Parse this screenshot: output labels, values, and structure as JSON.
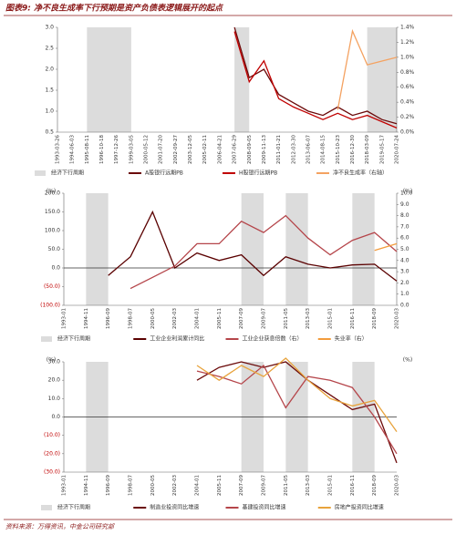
{
  "title": "图表9: 净不良生成率下行预期是资产负债表逻辑展开的起点",
  "source": "资料来源：万得资讯，中金公司研究部",
  "chart_data": [
    {
      "type": "line",
      "categories": [
        "1993-03-26",
        "1994-06-03",
        "1995-08-11",
        "1996-10-18",
        "1997-12-26",
        "1999-03-05",
        "2000-05-12",
        "2001-07-20",
        "2002-09-27",
        "2003-12-05",
        "2005-02-11",
        "2006-04-21",
        "2007-06-29",
        "2008-09-05",
        "2009-11-13",
        "2011-01-21",
        "2012-03-30",
        "2013-06-07",
        "2014-08-15",
        "2015-10-23",
        "2016-12-30",
        "2018-03-09",
        "2019-05-17",
        "2020-07-24"
      ],
      "shading": {
        "name": "经济下行周期",
        "color": "#dcdcdc",
        "periods": [
          [
            "1995-08-11",
            "1999-03-05"
          ],
          [
            "2007-06-29",
            "2008-09-05"
          ],
          [
            "2018-03-09",
            "2020-07-24"
          ]
        ]
      },
      "series": [
        {
          "name": "A股银行远期PB",
          "color": "#6b0a0a",
          "values": [
            null,
            null,
            null,
            null,
            null,
            null,
            null,
            null,
            null,
            null,
            null,
            null,
            3.0,
            1.8,
            2.0,
            1.4,
            1.2,
            1.0,
            0.9,
            1.1,
            0.9,
            1.0,
            0.8,
            0.7
          ]
        },
        {
          "name": "H股银行远期PB",
          "color": "#c00000",
          "values": [
            null,
            null,
            null,
            null,
            null,
            null,
            null,
            null,
            null,
            null,
            null,
            null,
            2.9,
            1.7,
            2.2,
            1.3,
            1.1,
            0.95,
            0.8,
            0.95,
            0.8,
            0.9,
            0.75,
            0.6
          ]
        },
        {
          "name": "净不良生成率（右轴）",
          "color": "#f4a261",
          "axis": "y2",
          "values": [
            null,
            null,
            null,
            null,
            null,
            null,
            null,
            null,
            null,
            null,
            null,
            null,
            null,
            null,
            null,
            null,
            null,
            null,
            null,
            0.3,
            1.35,
            0.9,
            0.95,
            1.0
          ]
        }
      ],
      "ylim": [
        0.5,
        3.0
      ],
      "yticks": [
        {
          "value": 0.5,
          "label": "0.5"
        },
        {
          "value": 1.0,
          "label": "1.0"
        },
        {
          "value": 1.5,
          "label": "1.5"
        },
        {
          "value": 2.0,
          "label": "2.0"
        },
        {
          "value": 2.5,
          "label": "2.5"
        },
        {
          "value": 3.0,
          "label": "3.0"
        }
      ],
      "y2lim": [
        0,
        1.4
      ],
      "y2ticks": [
        {
          "value": 0,
          "label": "0.0%"
        },
        {
          "value": 0.2,
          "label": "0.2%"
        },
        {
          "value": 0.4,
          "label": "0.4%"
        },
        {
          "value": 0.6,
          "label": "0.6%"
        },
        {
          "value": 0.8,
          "label": "0.8%"
        },
        {
          "value": 1.0,
          "label": "1.0%"
        },
        {
          "value": 1.2,
          "label": "1.2%"
        },
        {
          "value": 1.4,
          "label": "1.4%"
        }
      ]
    },
    {
      "type": "line",
      "categories": [
        "1993-01",
        "1994-11",
        "1996-09",
        "1998-07",
        "2000-05",
        "2002-03",
        "2004-01",
        "2005-11",
        "2007-09",
        "2009-07",
        "2011-05",
        "2013-03",
        "2015-01",
        "2016-11",
        "2018-09",
        "2020-03"
      ],
      "unit": "(%)",
      "unit2": "(%)",
      "zero_line": true,
      "negative_tick_color": "#c00000",
      "shading": {
        "name": "经济下行周期",
        "color": "#dcdcdc",
        "periods": [
          [
            "1994-11",
            "1996-09"
          ],
          [
            "2007-09",
            "2009-07"
          ],
          [
            "2011-05",
            "2013-03"
          ],
          [
            "2016-11",
            "2018-09"
          ]
        ]
      },
      "series": [
        {
          "name": "工业企业利润累计同比",
          "color": "#5a0000",
          "values": [
            null,
            null,
            -20,
            30,
            150,
            0,
            40,
            20,
            35,
            -20,
            30,
            10,
            0,
            8,
            10,
            -35
          ]
        },
        {
          "name": "工业企业获息倍数（右）",
          "color": "#b5454a",
          "axis": "y2",
          "values": [
            null,
            null,
            null,
            1.5,
            2.5,
            3.5,
            5.5,
            5.5,
            7.5,
            6.5,
            8.0,
            6.0,
            4.5,
            5.8,
            6.5,
            4.8
          ]
        },
        {
          "name": "失业率（右）",
          "color": "#f39c3c",
          "axis": "y2",
          "values": [
            null,
            null,
            null,
            null,
            null,
            null,
            null,
            null,
            null,
            null,
            null,
            null,
            null,
            null,
            4.9,
            5.5
          ]
        }
      ],
      "ylim": [
        -100,
        200
      ],
      "yticks": [
        {
          "value": 200,
          "label": "200.0"
        },
        {
          "value": 150,
          "label": "150.0"
        },
        {
          "value": 100,
          "label": "100.0"
        },
        {
          "value": 50,
          "label": "50.0"
        },
        {
          "value": 0,
          "label": "0.0"
        },
        {
          "value": -50,
          "label": "(50.0)"
        },
        {
          "value": -100,
          "label": "(100.0)"
        }
      ],
      "y2lim": [
        0,
        10
      ],
      "y2ticks": [
        {
          "value": 0,
          "label": "0.0"
        },
        {
          "value": 1,
          "label": "1.0"
        },
        {
          "value": 2,
          "label": "2.0"
        },
        {
          "value": 3,
          "label": "3.0"
        },
        {
          "value": 4,
          "label": "4.0"
        },
        {
          "value": 5,
          "label": "5.0"
        },
        {
          "value": 6,
          "label": "6.0"
        },
        {
          "value": 7,
          "label": "7.0"
        },
        {
          "value": 8,
          "label": "8.0"
        },
        {
          "value": 9,
          "label": "9.0"
        },
        {
          "value": 10,
          "label": "10.0"
        }
      ]
    },
    {
      "type": "line",
      "categories": [
        "1993-01",
        "1994-11",
        "1996-09",
        "1998-07",
        "2000-05",
        "2002-03",
        "2004-01",
        "2005-11",
        "2007-09",
        "2009-07",
        "2011-05",
        "2013-03",
        "2015-01",
        "2016-11",
        "2018-09",
        "2020-03"
      ],
      "unit": "(%)",
      "unit2": "(%)",
      "zero_line": true,
      "negative_tick_color": "#c00000",
      "shading": {
        "name": "经济下行周期",
        "color": "#dcdcdc",
        "periods": [
          [
            "1994-11",
            "1996-09"
          ],
          [
            "2007-09",
            "2009-07"
          ],
          [
            "2011-05",
            "2013-03"
          ],
          [
            "2016-11",
            "2018-09"
          ]
        ]
      },
      "series": [
        {
          "name": "制造业投资同比增速",
          "color": "#6b0a0a",
          "values": [
            null,
            null,
            null,
            null,
            null,
            null,
            20,
            27,
            30,
            27,
            30,
            20,
            12,
            4,
            7,
            -25
          ]
        },
        {
          "name": "基建投资同比增速",
          "color": "#b5454a",
          "values": [
            null,
            null,
            null,
            null,
            null,
            null,
            25,
            22,
            18,
            28,
            5,
            22,
            20,
            16,
            0,
            -20
          ]
        },
        {
          "name": "房地产投资同比增速",
          "color": "#e8a33c",
          "values": [
            null,
            null,
            null,
            null,
            null,
            null,
            28,
            20,
            28,
            22,
            32,
            20,
            10,
            6,
            9,
            -8
          ]
        }
      ],
      "ylim": [
        -30,
        30
      ],
      "yticks": [
        {
          "value": 30,
          "label": "30.0"
        },
        {
          "value": 20,
          "label": "20.0"
        },
        {
          "value": 10,
          "label": "10.0"
        },
        {
          "value": 0,
          "label": "0.0"
        },
        {
          "value": -10,
          "label": "(10.0)"
        },
        {
          "value": -20,
          "label": "(20.0)"
        },
        {
          "value": -30,
          "label": "(30.0)"
        }
      ]
    }
  ]
}
